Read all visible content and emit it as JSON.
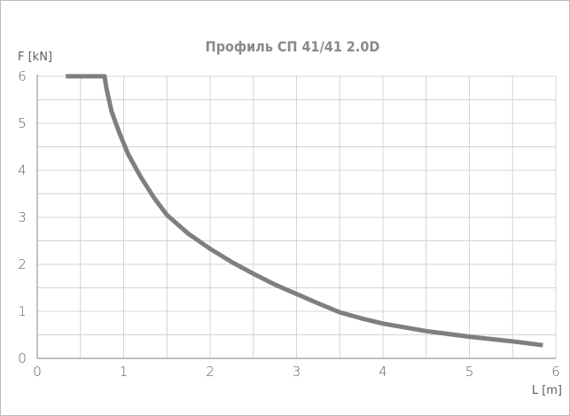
{
  "chart_data": {
    "type": "line",
    "title": "Профиль СП 41/41 2.0D",
    "xlabel": "L [m]",
    "ylabel": "F [kN]",
    "xlim": [
      0,
      6
    ],
    "ylim": [
      0,
      6
    ],
    "x_ticks": [
      "0",
      "1",
      "2",
      "3",
      "4",
      "5",
      "6"
    ],
    "y_ticks": [
      "0",
      "1",
      "2",
      "3",
      "4",
      "5",
      "6"
    ],
    "grid": true,
    "grid_step": 0.5,
    "series": [
      {
        "color": "#7f7f7f",
        "x": [
          0.33,
          0.78,
          0.8,
          0.86,
          0.95,
          1.05,
          1.2,
          1.35,
          1.5,
          1.75,
          2.0,
          2.25,
          2.5,
          2.75,
          3.0,
          3.25,
          3.5,
          3.75,
          4.0,
          4.5,
          5.0,
          5.5,
          5.85
        ],
        "y": [
          6.0,
          6.0,
          5.75,
          5.25,
          4.8,
          4.35,
          3.85,
          3.42,
          3.05,
          2.65,
          2.33,
          2.05,
          1.8,
          1.57,
          1.37,
          1.17,
          0.98,
          0.85,
          0.74,
          0.58,
          0.46,
          0.36,
          0.28
        ]
      }
    ]
  }
}
